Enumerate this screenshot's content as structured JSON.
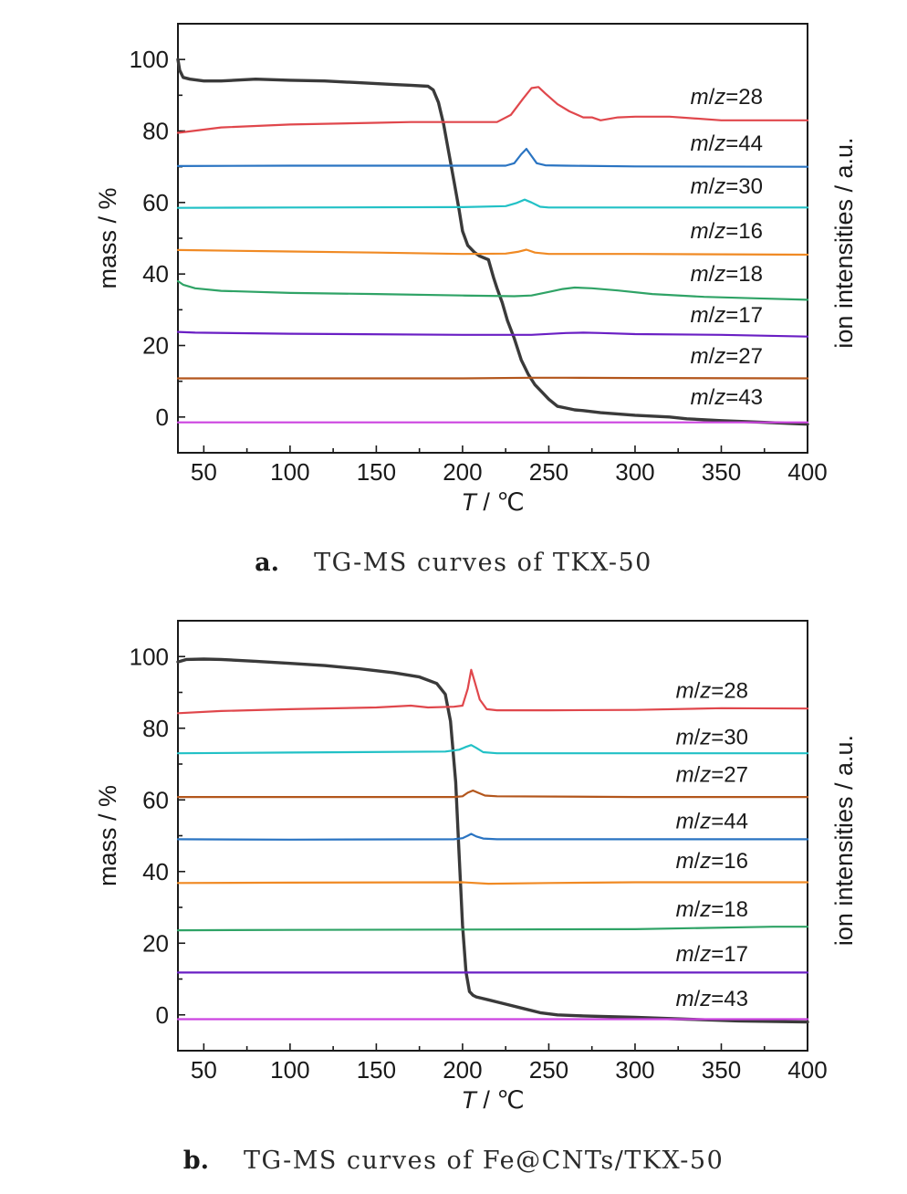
{
  "colors": {
    "mass": "#3a3a3a",
    "mz28": "#e0474c",
    "mz44": "#2a74c2",
    "mz30": "#22c1c6",
    "mz16": "#f08a24",
    "mz18": "#2fa366",
    "mz17": "#6a1fc4",
    "mz27": "#b3561c",
    "mz43": "#cc44e0"
  },
  "chart_data": [
    {
      "type": "line",
      "caption_letter": "a.",
      "caption": "TG-MS curves of TKX-50",
      "xlabel_italic": "T",
      "xlabel_rest": " / ℃",
      "ylabel": "mass / %",
      "y2label": "ion intensities / a.u.",
      "xlim": [
        35,
        400
      ],
      "ylim": [
        -10,
        110
      ],
      "xticks": [
        "50",
        "100",
        "150",
        "200",
        "250",
        "300",
        "350",
        "400"
      ],
      "yticks": [
        "0",
        "20",
        "40",
        "60",
        "80",
        "100"
      ],
      "series": [
        {
          "name": "mass",
          "color_key": "mass",
          "x": [
            35,
            36,
            38,
            42,
            50,
            60,
            80,
            100,
            120,
            140,
            160,
            170,
            180,
            183,
            186,
            189,
            192,
            195,
            198,
            200,
            203,
            207,
            210,
            215,
            218,
            220,
            223,
            226,
            230,
            234,
            238,
            242,
            246,
            250,
            255,
            260,
            265,
            270,
            280,
            300,
            320,
            330,
            350,
            375,
            400
          ],
          "y": [
            100,
            97,
            95,
            94.5,
            94,
            94,
            94.5,
            94.2,
            94,
            93.5,
            93,
            92.8,
            92.5,
            91.5,
            88,
            82,
            74,
            66,
            58,
            52,
            48,
            46,
            45,
            44,
            39,
            36,
            32,
            27,
            22,
            16,
            12,
            9,
            7,
            5,
            3,
            2.5,
            2,
            1.8,
            1.2,
            0.5,
            0,
            -0.5,
            -1,
            -1.5,
            -2
          ]
        },
        {
          "name": "m/z=28",
          "color_key": "mz28",
          "x": [
            35,
            60,
            100,
            150,
            170,
            200,
            220,
            228,
            235,
            240,
            244,
            248,
            255,
            262,
            270,
            275,
            280,
            290,
            300,
            320,
            350,
            400
          ],
          "y": [
            79.5,
            81,
            81.8,
            82.3,
            82.5,
            82.5,
            82.5,
            84.5,
            89,
            92,
            92.3,
            90.5,
            87.5,
            85.5,
            83.8,
            83.8,
            83,
            83.8,
            84,
            84,
            83,
            83
          ]
        },
        {
          "name": "m/z=44",
          "color_key": "mz44",
          "x": [
            35,
            100,
            200,
            225,
            230,
            234,
            237,
            240,
            243,
            248,
            260,
            300,
            400
          ],
          "y": [
            70.2,
            70.3,
            70.3,
            70.3,
            71,
            73.5,
            75,
            73,
            71,
            70.4,
            70.3,
            70.1,
            70
          ]
        },
        {
          "name": "m/z=30",
          "color_key": "mz30",
          "x": [
            35,
            100,
            200,
            225,
            231,
            236,
            240,
            245,
            250,
            300,
            400
          ],
          "y": [
            58.5,
            58.6,
            58.7,
            59,
            59.8,
            60.8,
            60,
            58.8,
            58.6,
            58.6,
            58.6
          ]
        },
        {
          "name": "m/z=16",
          "color_key": "mz16",
          "x": [
            35,
            100,
            150,
            200,
            225,
            232,
            237,
            242,
            250,
            300,
            400
          ],
          "y": [
            46.7,
            46.3,
            46,
            45.6,
            45.7,
            46.2,
            46.8,
            46,
            45.6,
            45.6,
            45.4
          ]
        },
        {
          "name": "m/z=18",
          "color_key": "mz18",
          "x": [
            35,
            38,
            45,
            60,
            100,
            150,
            200,
            230,
            240,
            250,
            258,
            265,
            275,
            290,
            310,
            340,
            370,
            400
          ],
          "y": [
            38,
            37,
            36,
            35.3,
            34.7,
            34.4,
            34,
            33.8,
            34,
            35,
            35.8,
            36.2,
            36,
            35.4,
            34.4,
            33.6,
            33.2,
            32.8
          ]
        },
        {
          "name": "m/z=17",
          "color_key": "mz17",
          "x": [
            35,
            45,
            100,
            200,
            240,
            260,
            270,
            280,
            300,
            350,
            400
          ],
          "y": [
            23.8,
            23.6,
            23.3,
            23,
            23,
            23.5,
            23.6,
            23.5,
            23.2,
            23,
            22.5
          ]
        },
        {
          "name": "m/z=27",
          "color_key": "mz27",
          "x": [
            35,
            100,
            200,
            240,
            260,
            300,
            400
          ],
          "y": [
            10.8,
            10.8,
            10.8,
            11,
            11,
            10.9,
            10.8
          ]
        },
        {
          "name": "m/z=43",
          "color_key": "mz43",
          "x": [
            35,
            100,
            200,
            300,
            400
          ],
          "y": [
            -1.5,
            -1.5,
            -1.5,
            -1.5,
            -1.5
          ]
        }
      ],
      "mz_labels": [
        {
          "text": "m/z=28",
          "y": 87.5
        },
        {
          "text": "m/z=44",
          "y": 74.5
        },
        {
          "text": "m/z=30",
          "y": 62.5
        },
        {
          "text": "m/z=16",
          "y": 50
        },
        {
          "text": "m/z=18",
          "y": 38
        },
        {
          "text": "m/z=17",
          "y": 26.5
        },
        {
          "text": "m/z=27",
          "y": 15
        },
        {
          "text": "m/z=43",
          "y": 3.5
        }
      ]
    },
    {
      "type": "line",
      "caption_letter": "b.",
      "caption": "TG-MS curves of Fe@CNTs/TKX-50",
      "xlabel_italic": "T",
      "xlabel_rest": " / ℃",
      "ylabel": "mass / %",
      "y2label": "ion intensities / a.u.",
      "xlim": [
        35,
        400
      ],
      "ylim": [
        -10,
        110
      ],
      "xticks": [
        "50",
        "100",
        "150",
        "200",
        "250",
        "300",
        "350",
        "400"
      ],
      "yticks": [
        "0",
        "20",
        "40",
        "60",
        "80",
        "100"
      ],
      "series": [
        {
          "name": "mass",
          "color_key": "mass",
          "x": [
            35,
            40,
            50,
            60,
            80,
            100,
            120,
            140,
            160,
            175,
            185,
            190,
            193,
            196,
            198,
            200,
            202,
            204,
            206,
            208,
            215,
            225,
            235,
            245,
            255,
            270,
            300,
            330,
            360,
            400
          ],
          "y": [
            98.5,
            99.2,
            99.3,
            99.2,
            98.7,
            98.1,
            97.5,
            96.6,
            95.5,
            94.3,
            92.5,
            89.5,
            82,
            65,
            45,
            25,
            12,
            6.5,
            5.5,
            5,
            4.2,
            3,
            1.8,
            0.6,
            0,
            -0.3,
            -0.7,
            -1.2,
            -1.7,
            -2
          ]
        },
        {
          "name": "m/z=28",
          "color_key": "mz28",
          "x": [
            35,
            60,
            100,
            150,
            170,
            180,
            195,
            200,
            203,
            205,
            207,
            210,
            214,
            220,
            250,
            300,
            350,
            400
          ],
          "y": [
            84.2,
            84.8,
            85.3,
            85.8,
            86.3,
            85.8,
            86,
            86.3,
            91,
            96.3,
            93,
            88,
            85.3,
            85,
            85,
            85.1,
            85.6,
            85.5
          ]
        },
        {
          "name": "m/z=30",
          "color_key": "mz30",
          "x": [
            35,
            100,
            190,
            198,
            202,
            205,
            208,
            212,
            220,
            300,
            400
          ],
          "y": [
            73,
            73.2,
            73.5,
            74,
            74.8,
            75.3,
            74.5,
            73.3,
            73,
            73,
            73
          ]
        },
        {
          "name": "m/z=27",
          "color_key": "mz27",
          "x": [
            35,
            100,
            195,
            200,
            203,
            206,
            209,
            213,
            220,
            300,
            400
          ],
          "y": [
            60.8,
            60.8,
            60.8,
            61,
            62,
            62.6,
            62,
            61.2,
            61,
            60.8,
            60.8
          ]
        },
        {
          "name": "m/z=44",
          "color_key": "mz44",
          "x": [
            35,
            100,
            195,
            200,
            203,
            205,
            208,
            212,
            220,
            300,
            400
          ],
          "y": [
            49,
            48.9,
            49,
            49.3,
            50,
            50.5,
            49.8,
            49.2,
            49,
            49,
            49
          ]
        },
        {
          "name": "m/z=16",
          "color_key": "mz16",
          "x": [
            35,
            100,
            200,
            215,
            250,
            300,
            400
          ],
          "y": [
            36.8,
            36.9,
            37,
            36.6,
            36.8,
            37,
            37
          ]
        },
        {
          "name": "m/z=18",
          "color_key": "mz18",
          "x": [
            35,
            100,
            200,
            300,
            380,
            400
          ],
          "y": [
            23.6,
            23.7,
            23.8,
            23.9,
            24.6,
            24.6
          ]
        },
        {
          "name": "m/z=17",
          "color_key": "mz17",
          "x": [
            35,
            100,
            200,
            300,
            400
          ],
          "y": [
            11.8,
            11.8,
            11.8,
            11.8,
            11.8
          ]
        },
        {
          "name": "m/z=43",
          "color_key": "mz43",
          "x": [
            35,
            100,
            200,
            300,
            400
          ],
          "y": [
            -1.2,
            -1.2,
            -1.2,
            -1.2,
            -1.2
          ]
        }
      ],
      "mz_labels": [
        {
          "text": "m/z=28",
          "y": 88.5
        },
        {
          "text": "m/z=30",
          "y": 75.5
        },
        {
          "text": "m/z=27",
          "y": 65
        },
        {
          "text": "m/z=44",
          "y": 52
        },
        {
          "text": "m/z=16",
          "y": 41
        },
        {
          "text": "m/z=18",
          "y": 27.5
        },
        {
          "text": "m/z=17",
          "y": 15
        },
        {
          "text": "m/z=43",
          "y": 2.5
        }
      ]
    }
  ]
}
